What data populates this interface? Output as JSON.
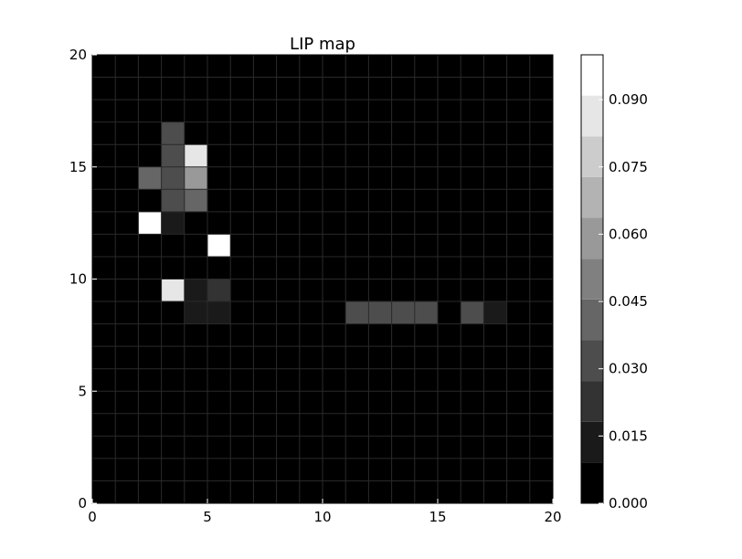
{
  "chart_data": {
    "type": "heatmap",
    "title": "LIP map",
    "xlabel": "",
    "ylabel": "",
    "xlim": [
      0,
      20
    ],
    "ylim": [
      0,
      20
    ],
    "x_ticks": [
      "0",
      "5",
      "10",
      "15",
      "20"
    ],
    "y_ticks": [
      "0",
      "5",
      "10",
      "15",
      "20"
    ],
    "grid": true,
    "colormap": "gray",
    "colorbar": {
      "vmin": 0.0,
      "vmax": 0.1,
      "levels": 11,
      "tick_values": [
        0.0,
        0.015,
        0.03,
        0.045,
        0.06,
        0.075,
        0.09
      ],
      "tick_labels": [
        "0.000",
        "0.015",
        "0.030",
        "0.045",
        "0.060",
        "0.075",
        "0.090"
      ]
    },
    "cells": [
      {
        "x": 3,
        "y": 16,
        "value": 0.035
      },
      {
        "x": 3,
        "y": 15,
        "value": 0.035
      },
      {
        "x": 4,
        "y": 15,
        "value": 0.085
      },
      {
        "x": 2,
        "y": 14,
        "value": 0.045
      },
      {
        "x": 3,
        "y": 14,
        "value": 0.035
      },
      {
        "x": 4,
        "y": 14,
        "value": 0.055
      },
      {
        "x": 3,
        "y": 13,
        "value": 0.035
      },
      {
        "x": 4,
        "y": 13,
        "value": 0.045
      },
      {
        "x": 2,
        "y": 12,
        "value": 0.1
      },
      {
        "x": 3,
        "y": 12,
        "value": 0.012
      },
      {
        "x": 5,
        "y": 11,
        "value": 0.1
      },
      {
        "x": 3,
        "y": 9,
        "value": 0.085
      },
      {
        "x": 4,
        "y": 9,
        "value": 0.012
      },
      {
        "x": 5,
        "y": 9,
        "value": 0.022
      },
      {
        "x": 4,
        "y": 8,
        "value": 0.012
      },
      {
        "x": 5,
        "y": 8,
        "value": 0.012
      },
      {
        "x": 11,
        "y": 8,
        "value": 0.035
      },
      {
        "x": 12,
        "y": 8,
        "value": 0.035
      },
      {
        "x": 13,
        "y": 8,
        "value": 0.035
      },
      {
        "x": 14,
        "y": 8,
        "value": 0.035
      },
      {
        "x": 16,
        "y": 8,
        "value": 0.035
      },
      {
        "x": 17,
        "y": 8,
        "value": 0.012
      }
    ]
  }
}
